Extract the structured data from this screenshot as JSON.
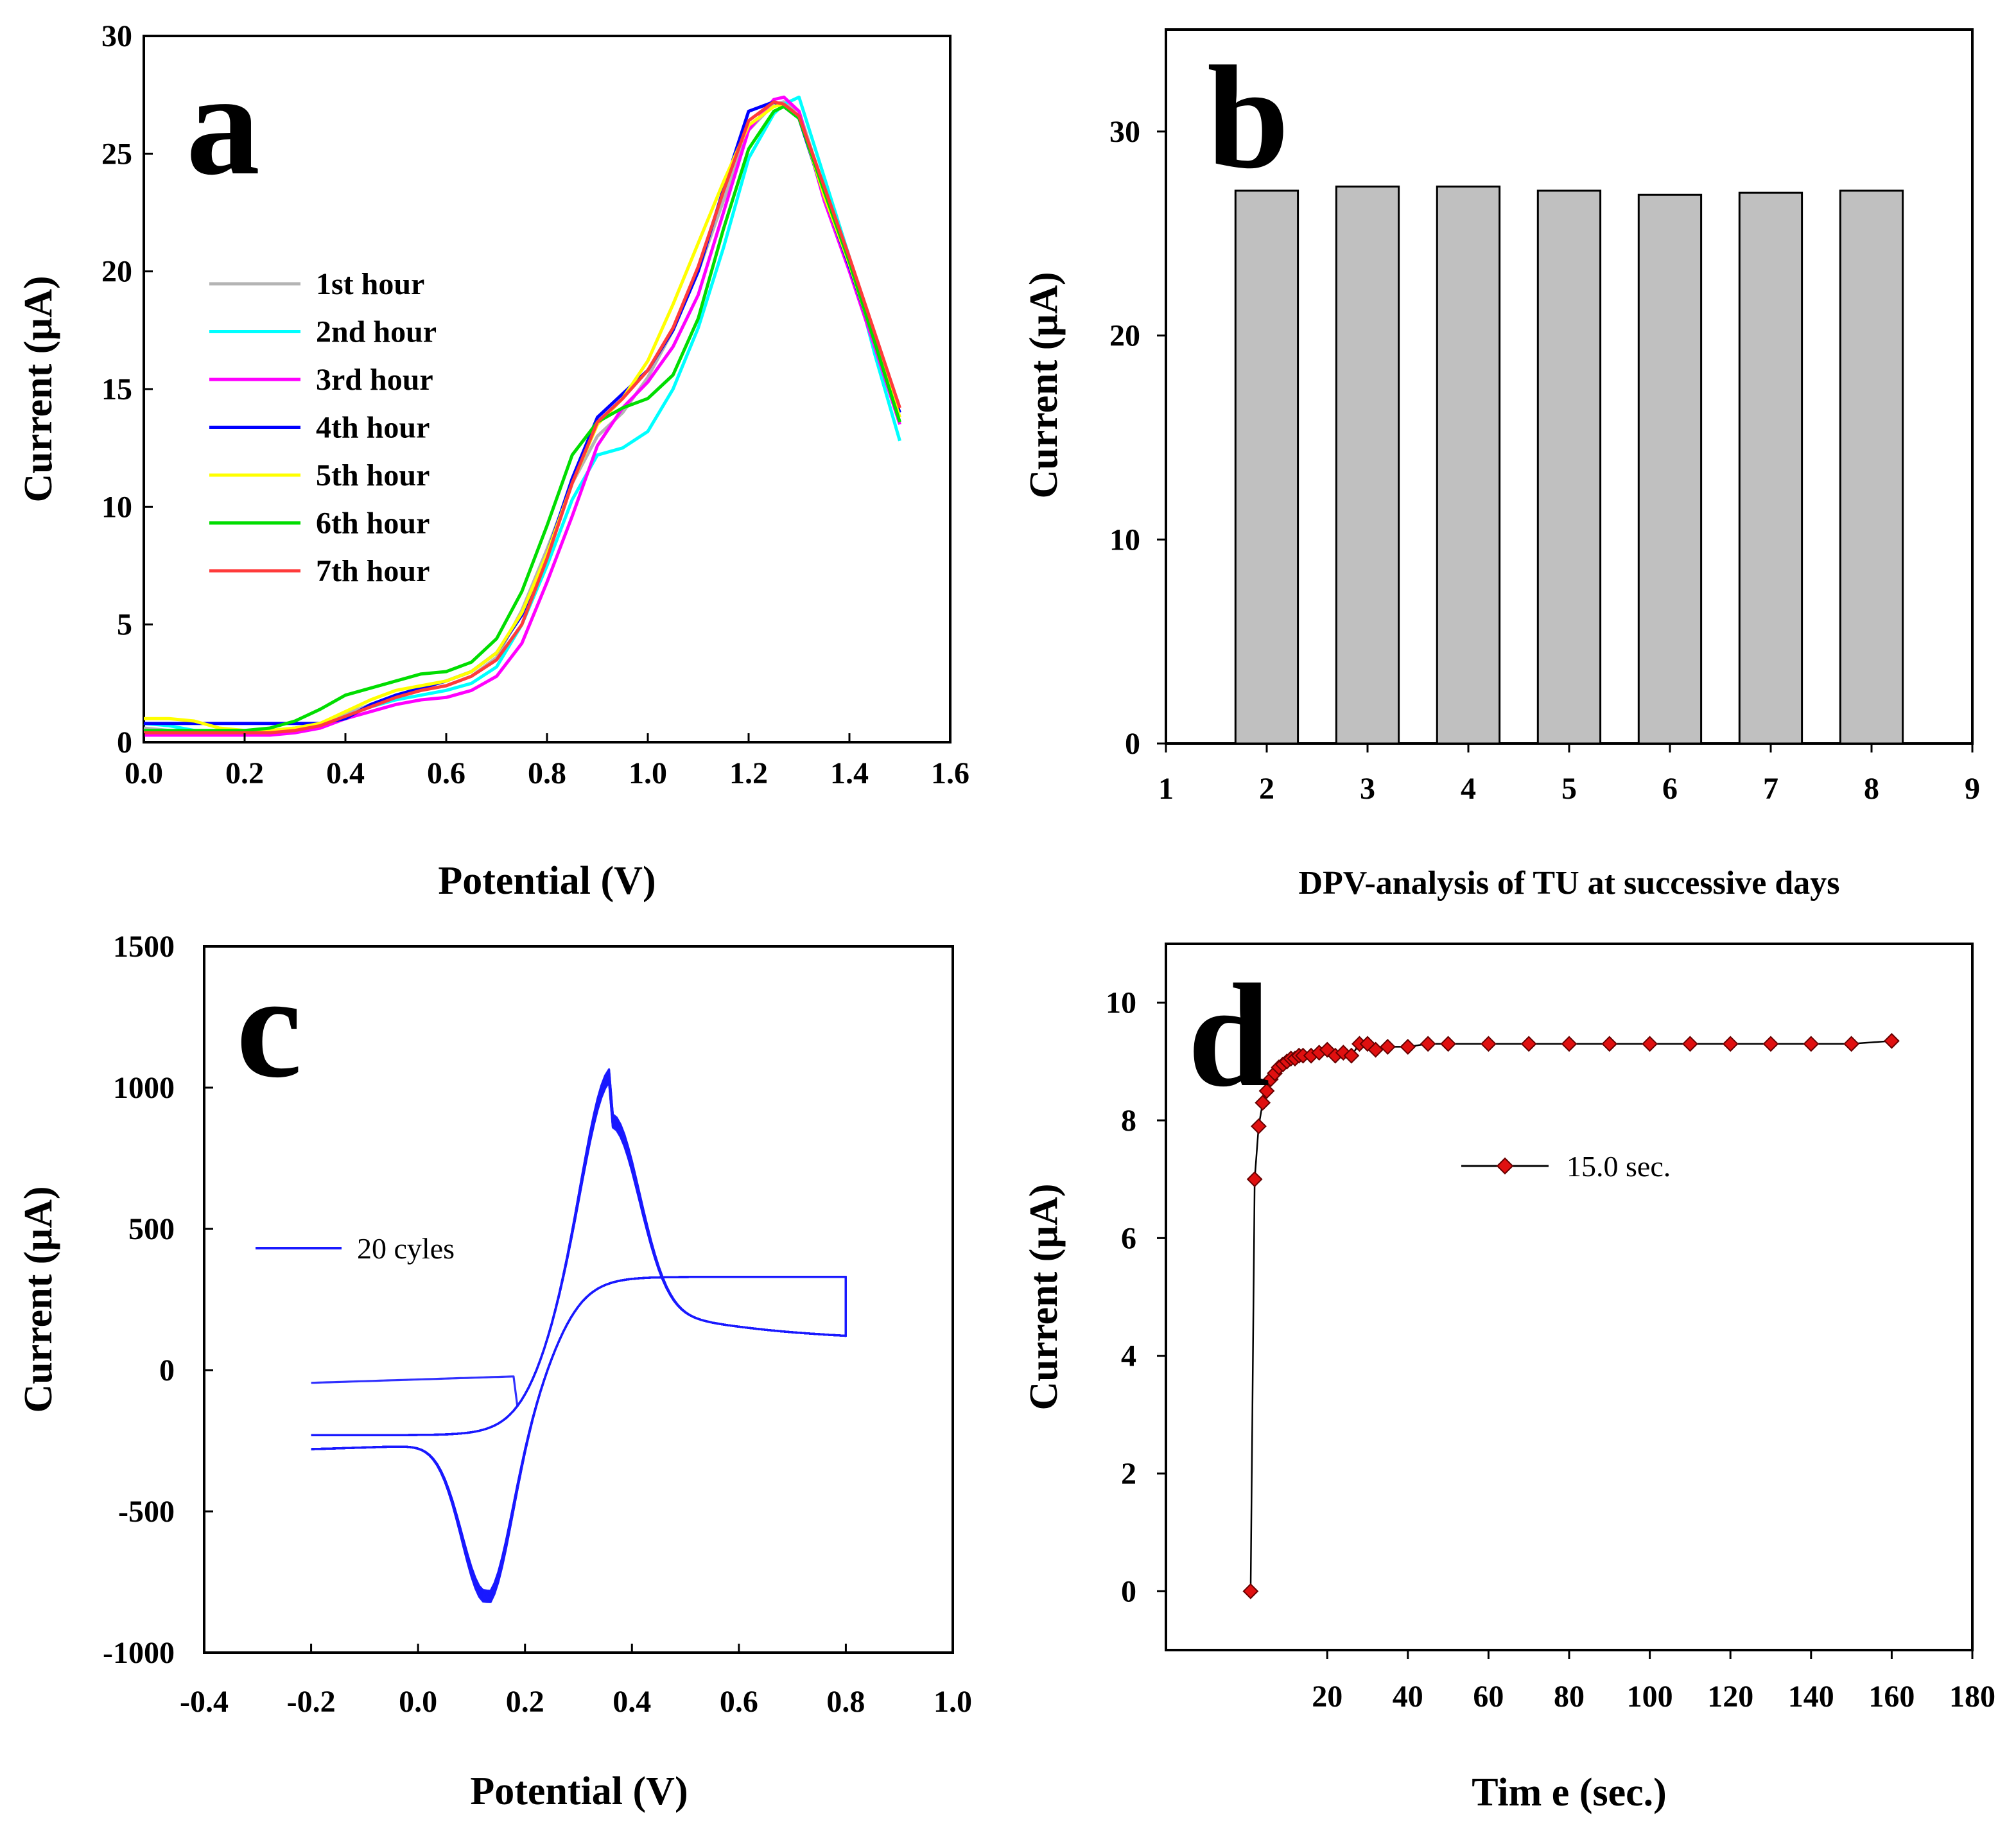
{
  "chart_data": [
    {
      "type": "line",
      "panel": "a",
      "xlabel": "Potential (V)",
      "ylabel": "Current (µA)",
      "xlim": [
        0.0,
        1.6
      ],
      "ylim": [
        0,
        30
      ],
      "xticks": [
        "0.0",
        "0.2",
        "0.4",
        "0.6",
        "0.8",
        "1.0",
        "1.2",
        "1.4",
        "1.6"
      ],
      "yticks": [
        "0",
        "5",
        "10",
        "15",
        "20",
        "25",
        "30"
      ],
      "legend_position": "left",
      "x": [
        0.0,
        0.05,
        0.1,
        0.15,
        0.2,
        0.25,
        0.3,
        0.35,
        0.4,
        0.45,
        0.5,
        0.55,
        0.6,
        0.65,
        0.7,
        0.75,
        0.8,
        0.85,
        0.9,
        0.95,
        1.0,
        1.05,
        1.1,
        1.15,
        1.2,
        1.25,
        1.27,
        1.3,
        1.35,
        1.4,
        1.45,
        1.5
      ],
      "series": [
        {
          "name": "1st hour",
          "color": "#b4b4b4",
          "values": [
            0.6,
            0.5,
            0.4,
            0.4,
            0.4,
            0.5,
            0.6,
            0.8,
            1.2,
            1.6,
            2.0,
            2.2,
            2.4,
            2.8,
            3.6,
            5.6,
            8.2,
            11.0,
            13.0,
            14.0,
            15.5,
            17.5,
            20.0,
            23.0,
            26.0,
            27.1,
            27.2,
            26.8,
            23.5,
            20.5,
            17.0,
            13.8
          ]
        },
        {
          "name": "2nd hour",
          "color": "#00ffff",
          "values": [
            0.8,
            0.7,
            0.5,
            0.4,
            0.4,
            0.5,
            0.5,
            0.7,
            1.1,
            1.5,
            1.8,
            2.0,
            2.2,
            2.5,
            3.2,
            5.0,
            7.5,
            10.3,
            12.2,
            12.5,
            13.2,
            15.0,
            17.6,
            21.0,
            24.8,
            26.7,
            27.1,
            27.4,
            24.0,
            20.6,
            16.5,
            12.8
          ]
        },
        {
          "name": "3rd hour",
          "color": "#ff00ff",
          "values": [
            0.3,
            0.3,
            0.3,
            0.3,
            0.3,
            0.3,
            0.4,
            0.6,
            1.0,
            1.3,
            1.6,
            1.8,
            1.9,
            2.2,
            2.8,
            4.2,
            6.8,
            9.6,
            12.6,
            14.2,
            15.3,
            16.8,
            19.0,
            22.5,
            26.0,
            27.3,
            27.4,
            26.8,
            23.0,
            20.0,
            16.8,
            13.5
          ]
        },
        {
          "name": "4th hour",
          "color": "#0000ff",
          "values": [
            0.8,
            0.8,
            0.8,
            0.8,
            0.8,
            0.8,
            0.8,
            0.8,
            1.0,
            1.6,
            2.0,
            2.3,
            2.6,
            3.0,
            3.8,
            5.4,
            8.0,
            11.2,
            13.8,
            14.8,
            15.8,
            17.5,
            20.0,
            23.5,
            26.8,
            27.2,
            27.0,
            26.5,
            23.2,
            20.2,
            17.0,
            14.0
          ]
        },
        {
          "name": "5th hour",
          "color": "#ffff00",
          "values": [
            1.0,
            1.0,
            0.9,
            0.6,
            0.5,
            0.5,
            0.6,
            0.8,
            1.3,
            1.8,
            2.2,
            2.4,
            2.6,
            3.0,
            3.8,
            5.5,
            8.0,
            11.0,
            13.5,
            14.6,
            16.2,
            18.6,
            21.2,
            23.8,
            26.2,
            27.0,
            27.1,
            26.6,
            23.2,
            20.3,
            17.0,
            13.8
          ]
        },
        {
          "name": "6th hour",
          "color": "#00dd00",
          "values": [
            0.5,
            0.5,
            0.5,
            0.5,
            0.5,
            0.6,
            0.9,
            1.4,
            2.0,
            2.3,
            2.6,
            2.9,
            3.0,
            3.4,
            4.4,
            6.4,
            9.2,
            12.2,
            13.6,
            14.2,
            14.6,
            15.6,
            18.0,
            21.8,
            25.2,
            26.8,
            27.0,
            26.5,
            23.4,
            20.4,
            17.0,
            13.6
          ]
        },
        {
          "name": "7th hour",
          "color": "#ff3b3b",
          "values": [
            0.4,
            0.4,
            0.4,
            0.4,
            0.4,
            0.4,
            0.5,
            0.7,
            1.1,
            1.5,
            1.9,
            2.2,
            2.4,
            2.8,
            3.5,
            5.0,
            7.8,
            11.0,
            13.6,
            14.6,
            15.8,
            17.6,
            20.2,
            23.4,
            26.4,
            27.2,
            27.1,
            26.6,
            23.6,
            20.6,
            17.4,
            14.2
          ]
        }
      ],
      "annotation": "a"
    },
    {
      "type": "bar",
      "panel": "b",
      "xlabel": "DPV-analysis of TU at successive days",
      "ylabel": "Current (µA)",
      "xlim": [
        1,
        9
      ],
      "ylim": [
        0,
        35
      ],
      "xticks": [
        "1",
        "2",
        "3",
        "4",
        "5",
        "6",
        "7",
        "8",
        "9"
      ],
      "yticks": [
        "0",
        "10",
        "20",
        "30"
      ],
      "categories": [
        "2",
        "3",
        "4",
        "5",
        "6",
        "7",
        "8"
      ],
      "values": [
        27.1,
        27.3,
        27.3,
        27.1,
        26.9,
        27.0,
        27.1
      ],
      "bar_color": "#c0c0c0",
      "annotation": "b"
    },
    {
      "type": "line",
      "panel": "c",
      "xlabel": "Potential (V)",
      "ylabel": "Current (µA)",
      "xlim": [
        -0.4,
        1.0
      ],
      "ylim": [
        -1000,
        1500
      ],
      "xticks": [
        "-0.4",
        "-0.2",
        "0.0",
        "0.2",
        "0.4",
        "0.6",
        "0.8",
        "1.0"
      ],
      "yticks": [
        "-1000",
        "-500",
        "0",
        "500",
        "1000",
        "1500"
      ],
      "legend_position": "left",
      "series": [
        {
          "name": "20 cyles",
          "color": "#1a1aff",
          "cycles": 20,
          "E_ox": 0.36,
          "E_red": 0.13,
          "I_ox_peak": 950,
          "I_red_peak": -850
        }
      ],
      "annotation": "c"
    },
    {
      "type": "scatter",
      "panel": "d",
      "xlabel": "Tim e (sec.)",
      "ylabel": "Current (µA)",
      "xlim": [
        -20,
        180
      ],
      "ylim": [
        -1,
        11
      ],
      "xticks": [
        "20",
        "40",
        "60",
        "80",
        "100",
        "120",
        "140",
        "160",
        "180"
      ],
      "yticks": [
        "0",
        "2",
        "4",
        "6",
        "8",
        "10"
      ],
      "legend_position": "center-right",
      "series": [
        {
          "name": "15.0 sec.",
          "color": "#e01010",
          "x": [
            1,
            2,
            3,
            4,
            5,
            6,
            7,
            8,
            9,
            10,
            11,
            12,
            13,
            14,
            16,
            18,
            20,
            22,
            24,
            26,
            28,
            30,
            32,
            35,
            40,
            45,
            50,
            60,
            70,
            80,
            90,
            100,
            110,
            120,
            130,
            140,
            150,
            160
          ],
          "values": [
            0,
            7.0,
            7.9,
            8.3,
            8.5,
            8.7,
            8.8,
            8.9,
            8.95,
            9.0,
            9.05,
            9.05,
            9.1,
            9.1,
            9.1,
            9.15,
            9.2,
            9.1,
            9.15,
            9.1,
            9.3,
            9.3,
            9.2,
            9.25,
            9.25,
            9.3,
            9.3,
            9.3,
            9.3,
            9.3,
            9.3,
            9.3,
            9.3,
            9.3,
            9.3,
            9.3,
            9.3,
            9.35
          ]
        }
      ],
      "annotation": "d"
    }
  ]
}
